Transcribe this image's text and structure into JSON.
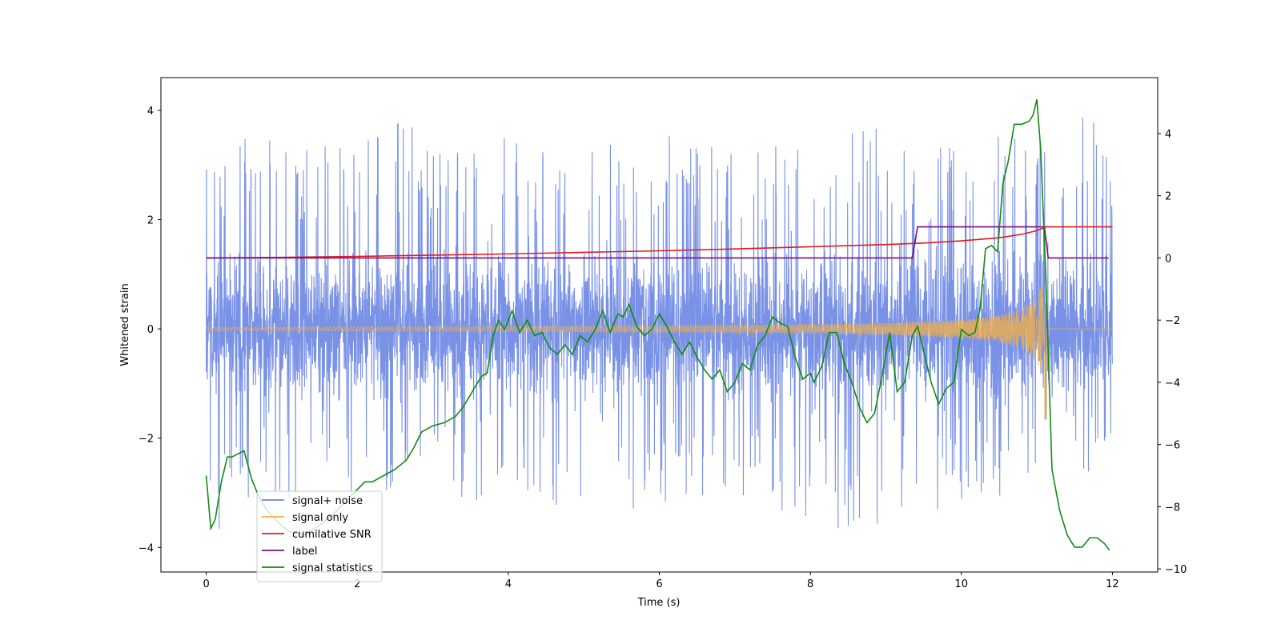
{
  "chart_data": {
    "type": "line",
    "title": "",
    "xlabel": "Time (s)",
    "ylabel": "Whitened strain",
    "y2label": "",
    "xlim": [
      -0.6,
      12.6
    ],
    "ylim": [
      -4.45,
      4.6
    ],
    "y2lim": [
      -10.1,
      5.8
    ],
    "x_ticks": [
      0,
      2,
      4,
      6,
      8,
      10,
      12
    ],
    "y_ticks": [
      -4,
      -2,
      0,
      2,
      4
    ],
    "y2_ticks": [
      -10,
      -8,
      -6,
      -4,
      -2,
      0,
      2,
      4
    ],
    "legend": {
      "location": "lower left",
      "entries": [
        {
          "label": "signal+ noise",
          "color": "#6b86e3"
        },
        {
          "label": "signal only",
          "color": "#f5b041"
        },
        {
          "label": "cumilative SNR",
          "color": "#e31a1c"
        },
        {
          "label": "label",
          "color": "#7b0d83"
        },
        {
          "label": "signal statistics",
          "color": "#138a13"
        }
      ]
    },
    "series": [
      {
        "name": "signal+ noise",
        "axis": "left",
        "color": "#6b86e3",
        "kind": "noise",
        "x_range": [
          0,
          12
        ],
        "envelope_high": [
          3.3,
          3.6,
          3.7,
          3.5,
          3.6,
          3.8,
          3.5,
          3.4,
          3.6,
          3.5,
          3.4,
          3.5,
          3.6,
          3.3,
          3.4,
          3.6,
          3.5,
          3.7,
          3.4,
          3.3,
          3.6,
          3.5,
          4.1,
          3.5
        ],
        "envelope_low": [
          -4.0,
          -3.2,
          -3.3,
          -3.0,
          -3.5,
          -3.2,
          -3.1,
          -3.3,
          -3.0,
          -3.3,
          -3.2,
          -3.4,
          -3.1,
          -3.2,
          -3.3,
          -3.6,
          -3.7,
          -3.7,
          -3.5,
          -3.3,
          -3.2,
          -3.0,
          -2.9,
          -2.8
        ],
        "core_band": [
          -1.3,
          1.3
        ]
      },
      {
        "name": "signal only",
        "axis": "left",
        "color": "#f5b041",
        "kind": "chirp",
        "x": [
          0,
          2,
          4,
          6,
          8,
          9,
          10,
          10.5,
          10.8,
          11.0,
          11.1,
          11.12,
          12
        ],
        "amplitude": [
          0.03,
          0.04,
          0.05,
          0.06,
          0.08,
          0.11,
          0.17,
          0.25,
          0.38,
          0.6,
          0.95,
          0.0,
          0.0
        ],
        "min_value": -1.65
      },
      {
        "name": "cumilative SNR",
        "axis": "right",
        "color": "#e31a1c",
        "x": [
          0,
          1,
          2,
          3,
          4,
          5,
          6,
          7,
          8,
          9,
          9.5,
          10,
          10.5,
          10.8,
          11.0,
          11.1,
          11.12,
          12
        ],
        "y": [
          0,
          0.02,
          0.05,
          0.09,
          0.13,
          0.18,
          0.23,
          0.29,
          0.36,
          0.43,
          0.48,
          0.55,
          0.65,
          0.76,
          0.88,
          0.98,
          1.0,
          1.0
        ]
      },
      {
        "name": "label",
        "axis": "right",
        "color": "#7b0d83",
        "x": [
          0,
          9.35,
          9.42,
          11.1,
          11.15,
          11.95
        ],
        "y": [
          0,
          0,
          1,
          1,
          0,
          0
        ]
      },
      {
        "name": "signal statistics",
        "axis": "right",
        "color": "#138a13",
        "x": [
          0,
          0.06,
          0.12,
          0.2,
          0.28,
          0.34,
          0.42,
          0.5,
          0.6,
          0.7,
          0.8,
          0.95,
          1.1,
          1.3,
          1.5,
          1.7,
          1.9,
          2.1,
          2.2,
          2.35,
          2.5,
          2.65,
          2.75,
          2.85,
          3.0,
          3.15,
          3.3,
          3.4,
          3.5,
          3.57,
          3.65,
          3.72,
          3.8,
          3.87,
          3.95,
          4.05,
          4.15,
          4.25,
          4.35,
          4.45,
          4.55,
          4.65,
          4.75,
          4.85,
          4.95,
          5.05,
          5.15,
          5.25,
          5.35,
          5.45,
          5.52,
          5.6,
          5.7,
          5.8,
          5.9,
          6.0,
          6.1,
          6.2,
          6.3,
          6.4,
          6.5,
          6.6,
          6.7,
          6.8,
          6.9,
          7.0,
          7.1,
          7.2,
          7.3,
          7.4,
          7.5,
          7.6,
          7.7,
          7.8,
          7.9,
          8.0,
          8.05,
          8.15,
          8.25,
          8.35,
          8.45,
          8.55,
          8.65,
          8.75,
          8.85,
          8.95,
          9.05,
          9.15,
          9.25,
          9.35,
          9.42,
          9.5,
          9.6,
          9.7,
          9.8,
          9.9,
          10.0,
          10.1,
          10.18,
          10.25,
          10.32,
          10.4,
          10.48,
          10.55,
          10.62,
          10.7,
          10.8,
          10.9,
          10.95,
          11.0,
          11.05,
          11.12,
          11.2,
          11.3,
          11.4,
          11.5,
          11.6,
          11.7,
          11.8,
          11.9,
          11.96
        ],
        "y": [
          -7.0,
          -8.7,
          -8.4,
          -7.2,
          -6.4,
          -6.4,
          -6.3,
          -6.2,
          -7.1,
          -7.7,
          -8.1,
          -8.5,
          -8.8,
          -8.9,
          -8.6,
          -8.2,
          -7.7,
          -7.2,
          -7.2,
          -7.0,
          -6.8,
          -6.5,
          -6.1,
          -5.6,
          -5.4,
          -5.3,
          -5.1,
          -4.8,
          -4.4,
          -4.1,
          -3.8,
          -3.7,
          -2.5,
          -2.0,
          -2.3,
          -1.7,
          -2.4,
          -2.0,
          -2.5,
          -2.4,
          -2.9,
          -3.1,
          -2.8,
          -3.1,
          -2.5,
          -2.7,
          -2.3,
          -1.7,
          -2.4,
          -1.8,
          -1.9,
          -1.5,
          -2.2,
          -2.5,
          -2.3,
          -1.8,
          -2.2,
          -2.7,
          -3.1,
          -2.7,
          -3.2,
          -3.6,
          -3.9,
          -3.6,
          -4.3,
          -4.0,
          -3.4,
          -3.6,
          -2.8,
          -2.5,
          -1.9,
          -2.1,
          -2.2,
          -3.2,
          -3.9,
          -3.7,
          -4.0,
          -3.5,
          -2.4,
          -2.4,
          -3.4,
          -4.0,
          -4.8,
          -5.3,
          -5.0,
          -3.8,
          -2.4,
          -4.3,
          -4.0,
          -2.5,
          -2.2,
          -3.0,
          -4.0,
          -4.7,
          -4.2,
          -4.0,
          -2.3,
          -2.5,
          -2.4,
          -1.6,
          0.3,
          0.4,
          0.2,
          2.4,
          3.1,
          4.3,
          4.3,
          4.4,
          4.6,
          5.1,
          3.5,
          -0.7,
          -6.8,
          -8.1,
          -8.9,
          -9.3,
          -9.3,
          -9.0,
          -9.0,
          -9.2,
          -9.4
        ]
      }
    ]
  }
}
